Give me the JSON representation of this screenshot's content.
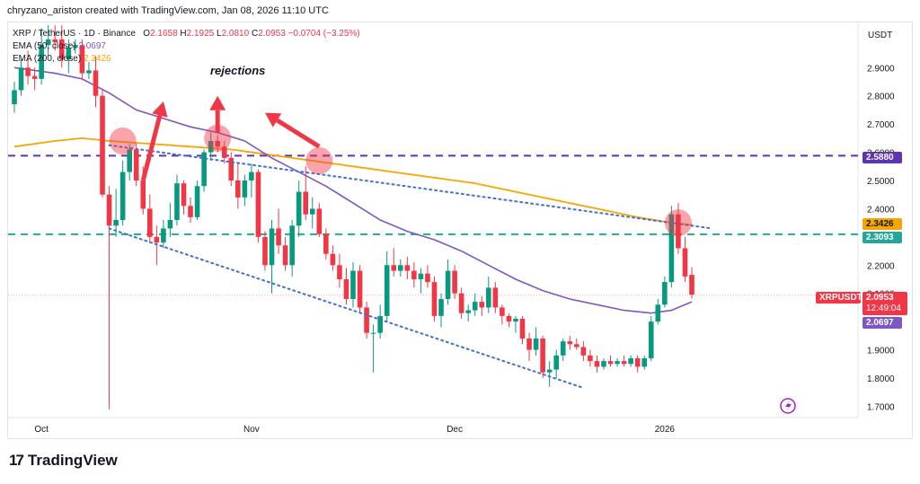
{
  "header": {
    "credit": "chryzano_ariston created with TradingView.com, Jan 08, 2026 11:10 UTC"
  },
  "legend": {
    "title": "XRP / TetherUS · 1D · Binance",
    "ohlc": {
      "o_label": "O",
      "o_value": "2.1658",
      "h_label": "H",
      "h_value": "2.1925",
      "l_label": "L",
      "l_value": "2.0810",
      "c_label": "C",
      "c_value": "2.0953",
      "change": "−0.0704 (−3.25%)"
    },
    "ema50": {
      "label": "EMA (50, close)",
      "value": "2.0697"
    },
    "ema200": {
      "label": "EMA (200, close)",
      "value": "2.3426"
    }
  },
  "axis": {
    "unit": "USDT"
  },
  "tags": {
    "level_upper": "2.5880",
    "ema200": "2.3426",
    "level_lower": "2.3093",
    "symbol": "XRPUSDT",
    "last_price": "2.0953",
    "countdown": "12:49:04",
    "ema50": "2.0697"
  },
  "annotation": {
    "text": "rejections"
  },
  "logo": {
    "text": "TradingView"
  },
  "colors": {
    "up": "#089981",
    "down": "#f23645",
    "ema50": "#7e57c2",
    "ema200": "#f7a600",
    "level_upper": "#5e35b1",
    "level_lower": "#26a69a",
    "trendline": "#3f6fd6"
  },
  "chart_data": {
    "type": "candlestick",
    "y_axis": {
      "ticks": [
        1.7,
        1.8,
        1.9,
        2.0,
        2.1,
        2.2,
        2.3,
        2.4,
        2.5,
        2.6,
        2.7,
        2.8,
        2.9
      ],
      "tick_labels": [
        "1.7000",
        "1.8000",
        "1.9000",
        "2.0000",
        "2.1000",
        "2.2000",
        "2.3000",
        "2.4000",
        "2.5000",
        "2.6000",
        "2.7000",
        "2.8000",
        "2.9000"
      ],
      "ylim": [
        1.66,
        3.06
      ]
    },
    "x_axis": {
      "labels": [
        {
          "text": "Oct",
          "index": 4
        },
        {
          "text": "Nov",
          "index": 35
        },
        {
          "text": "Dec",
          "index": 65
        },
        {
          "text": "2026",
          "index": 96
        }
      ]
    },
    "horizontal_levels": [
      2.588,
      2.3093
    ],
    "candles": [
      [
        2.77,
        2.85,
        2.74,
        2.82
      ],
      [
        2.82,
        2.93,
        2.8,
        2.9
      ],
      [
        2.9,
        2.96,
        2.84,
        2.87
      ],
      [
        2.87,
        2.9,
        2.82,
        2.86
      ],
      [
        2.86,
        3.04,
        2.84,
        2.98
      ],
      [
        2.98,
        3.05,
        2.94,
        3.0
      ],
      [
        3.0,
        3.05,
        2.96,
        2.99
      ],
      [
        3.0,
        3.05,
        2.9,
        2.93
      ],
      [
        2.93,
        3.0,
        2.88,
        2.97
      ],
      [
        2.97,
        3.0,
        2.95,
        2.98
      ],
      [
        2.98,
        3.0,
        2.86,
        2.88
      ],
      [
        2.88,
        2.92,
        2.86,
        2.89
      ],
      [
        2.89,
        2.94,
        2.76,
        2.8
      ],
      [
        2.8,
        2.82,
        2.44,
        2.45
      ],
      [
        2.45,
        2.48,
        1.69,
        2.34
      ],
      [
        2.34,
        2.47,
        2.3,
        2.36
      ],
      [
        2.36,
        2.57,
        2.34,
        2.53
      ],
      [
        2.53,
        2.63,
        2.5,
        2.61
      ],
      [
        2.61,
        2.63,
        2.48,
        2.5
      ],
      [
        2.5,
        2.55,
        2.38,
        2.4
      ],
      [
        2.4,
        2.45,
        2.28,
        2.3
      ],
      [
        2.3,
        2.34,
        2.2,
        2.28
      ],
      [
        2.28,
        2.36,
        2.26,
        2.33
      ],
      [
        2.33,
        2.42,
        2.3,
        2.36
      ],
      [
        2.36,
        2.52,
        2.34,
        2.49
      ],
      [
        2.49,
        2.5,
        2.38,
        2.41
      ],
      [
        2.41,
        2.44,
        2.35,
        2.37
      ],
      [
        2.37,
        2.5,
        2.36,
        2.48
      ],
      [
        2.48,
        2.61,
        2.46,
        2.6
      ],
      [
        2.6,
        2.67,
        2.57,
        2.64
      ],
      [
        2.64,
        2.66,
        2.6,
        2.62
      ],
      [
        2.62,
        2.64,
        2.56,
        2.58
      ],
      [
        2.58,
        2.6,
        2.48,
        2.5
      ],
      [
        2.5,
        2.56,
        2.4,
        2.44
      ],
      [
        2.44,
        2.52,
        2.41,
        2.5
      ],
      [
        2.5,
        2.56,
        2.44,
        2.53
      ],
      [
        2.53,
        2.54,
        2.28,
        2.3
      ],
      [
        2.3,
        2.32,
        2.18,
        2.2
      ],
      [
        2.2,
        2.36,
        2.1,
        2.33
      ],
      [
        2.33,
        2.4,
        2.24,
        2.27
      ],
      [
        2.27,
        2.3,
        2.18,
        2.2
      ],
      [
        2.2,
        2.36,
        2.16,
        2.34
      ],
      [
        2.34,
        2.5,
        2.3,
        2.46
      ],
      [
        2.46,
        2.55,
        2.36,
        2.38
      ],
      [
        2.38,
        2.44,
        2.33,
        2.4
      ],
      [
        2.4,
        2.42,
        2.3,
        2.31
      ],
      [
        2.31,
        2.33,
        2.22,
        2.24
      ],
      [
        2.24,
        2.27,
        2.18,
        2.2
      ],
      [
        2.2,
        2.24,
        2.12,
        2.15
      ],
      [
        2.15,
        2.19,
        2.06,
        2.08
      ],
      [
        2.08,
        2.21,
        2.05,
        2.18
      ],
      [
        2.18,
        2.2,
        2.03,
        2.05
      ],
      [
        2.05,
        2.07,
        1.94,
        1.96
      ],
      [
        1.96,
        1.99,
        1.82,
        1.96
      ],
      [
        1.96,
        2.06,
        1.94,
        2.02
      ],
      [
        2.02,
        2.25,
        2.0,
        2.2
      ],
      [
        2.2,
        2.26,
        2.16,
        2.18
      ],
      [
        2.18,
        2.22,
        2.16,
        2.2
      ],
      [
        2.2,
        2.23,
        2.15,
        2.18
      ],
      [
        2.18,
        2.21,
        2.12,
        2.15
      ],
      [
        2.15,
        2.19,
        2.1,
        2.17
      ],
      [
        2.17,
        2.2,
        2.12,
        2.14
      ],
      [
        2.14,
        2.16,
        2.0,
        2.02
      ],
      [
        2.02,
        2.1,
        1.98,
        2.08
      ],
      [
        2.08,
        2.22,
        2.06,
        2.18
      ],
      [
        2.18,
        2.2,
        2.08,
        2.1
      ],
      [
        2.1,
        2.12,
        2.01,
        2.03
      ],
      [
        2.03,
        2.06,
        2.0,
        2.04
      ],
      [
        2.04,
        2.1,
        2.02,
        2.07
      ],
      [
        2.07,
        2.09,
        2.02,
        2.05
      ],
      [
        2.05,
        2.16,
        2.03,
        2.12
      ],
      [
        2.12,
        2.14,
        2.03,
        2.05
      ],
      [
        2.05,
        2.06,
        1.99,
        2.02
      ],
      [
        2.02,
        2.03,
        1.98,
        2.0
      ],
      [
        2.0,
        2.02,
        1.96,
        2.01
      ],
      [
        2.01,
        2.02,
        1.92,
        1.94
      ],
      [
        1.94,
        1.96,
        1.86,
        1.9
      ],
      [
        1.9,
        1.98,
        1.88,
        1.94
      ],
      [
        1.94,
        1.95,
        1.8,
        1.82
      ],
      [
        1.82,
        1.86,
        1.77,
        1.83
      ],
      [
        1.83,
        1.9,
        1.8,
        1.88
      ],
      [
        1.88,
        1.94,
        1.86,
        1.93
      ],
      [
        1.93,
        1.95,
        1.9,
        1.92
      ],
      [
        1.92,
        1.94,
        1.9,
        1.91
      ],
      [
        1.91,
        1.93,
        1.86,
        1.88
      ],
      [
        1.88,
        1.9,
        1.84,
        1.86
      ],
      [
        1.86,
        1.88,
        1.82,
        1.84
      ],
      [
        1.84,
        1.87,
        1.83,
        1.86
      ],
      [
        1.86,
        1.88,
        1.84,
        1.85
      ],
      [
        1.85,
        1.87,
        1.84,
        1.86
      ],
      [
        1.86,
        1.88,
        1.84,
        1.85
      ],
      [
        1.85,
        1.88,
        1.84,
        1.87
      ],
      [
        1.87,
        1.88,
        1.82,
        1.84
      ],
      [
        1.84,
        1.88,
        1.83,
        1.87
      ],
      [
        1.87,
        2.02,
        1.86,
        2.0
      ],
      [
        2.0,
        2.08,
        1.99,
        2.06
      ],
      [
        2.06,
        2.16,
        2.05,
        2.14
      ],
      [
        2.14,
        2.41,
        2.12,
        2.38
      ],
      [
        2.38,
        2.42,
        2.24,
        2.26
      ],
      [
        2.26,
        2.3,
        2.14,
        2.16
      ],
      [
        2.1658,
        2.1925,
        2.081,
        2.0953
      ]
    ],
    "ema50": [
      [
        0,
        2.9
      ],
      [
        6,
        2.88
      ],
      [
        10,
        2.86
      ],
      [
        14,
        2.81
      ],
      [
        18,
        2.75
      ],
      [
        22,
        2.72
      ],
      [
        26,
        2.69
      ],
      [
        30,
        2.67
      ],
      [
        34,
        2.64
      ],
      [
        38,
        2.58
      ],
      [
        42,
        2.53
      ],
      [
        46,
        2.48
      ],
      [
        50,
        2.42
      ],
      [
        54,
        2.36
      ],
      [
        58,
        2.32
      ],
      [
        62,
        2.29
      ],
      [
        66,
        2.25
      ],
      [
        70,
        2.2
      ],
      [
        74,
        2.15
      ],
      [
        78,
        2.11
      ],
      [
        82,
        2.08
      ],
      [
        86,
        2.06
      ],
      [
        90,
        2.04
      ],
      [
        94,
        2.03
      ],
      [
        97,
        2.04
      ],
      [
        100,
        2.07
      ]
    ],
    "ema200": [
      [
        0,
        2.62
      ],
      [
        6,
        2.64
      ],
      [
        10,
        2.65
      ],
      [
        14,
        2.64
      ],
      [
        20,
        2.63
      ],
      [
        26,
        2.62
      ],
      [
        32,
        2.61
      ],
      [
        38,
        2.59
      ],
      [
        44,
        2.57
      ],
      [
        50,
        2.55
      ],
      [
        56,
        2.53
      ],
      [
        62,
        2.51
      ],
      [
        68,
        2.49
      ],
      [
        74,
        2.46
      ],
      [
        80,
        2.43
      ],
      [
        86,
        2.4
      ],
      [
        92,
        2.37
      ],
      [
        97,
        2.35
      ],
      [
        100,
        2.3426
      ]
    ],
    "trendlines": [
      {
        "from": [
          14,
          2.625
        ],
        "to": [
          103,
          2.33
        ]
      },
      {
        "from": [
          14,
          2.33
        ],
        "to": [
          84,
          1.765
        ]
      }
    ],
    "rejection_markers": [
      [
        16,
        2.64
      ],
      [
        30,
        2.65
      ],
      [
        45,
        2.57
      ],
      [
        98,
        2.35
      ]
    ],
    "arrows": [
      {
        "from": [
          19,
          2.5
        ],
        "to": [
          22,
          2.78
        ]
      },
      {
        "from": [
          30,
          2.67
        ],
        "to": [
          30,
          2.8
        ]
      },
      {
        "from": [
          45,
          2.62
        ],
        "to": [
          37,
          2.74
        ]
      }
    ]
  }
}
